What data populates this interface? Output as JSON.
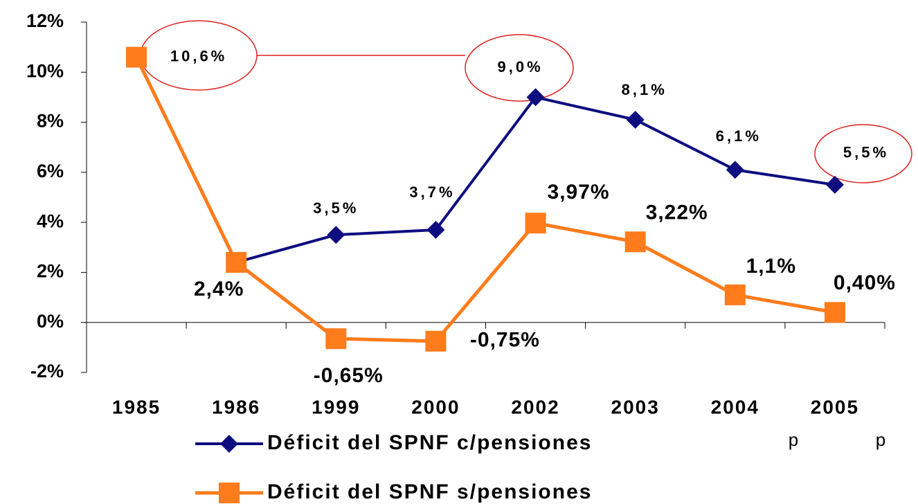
{
  "chart_data": {
    "type": "line",
    "categories": [
      "1985",
      "1986",
      "1999",
      "2000",
      "2002",
      "2003",
      "2004",
      "2005"
    ],
    "series": [
      {
        "name": "Déficit del SPNF c/pensiones",
        "color": "#0d0d80",
        "values": [
          10.6,
          2.4,
          3.5,
          3.7,
          9.0,
          8.1,
          6.1,
          5.5
        ],
        "value_labels": [
          "10,6%",
          null,
          "3,5%",
          "3,7%",
          "9,0%",
          "8,1%",
          "6,1%",
          "5,5%"
        ]
      },
      {
        "name": "Déficit del SPNF s/pensiones",
        "color": "#ff7c1c",
        "values": [
          10.6,
          2.4,
          -0.65,
          -0.75,
          3.97,
          3.22,
          1.1,
          0.4
        ],
        "value_labels": [
          null,
          "2,4%",
          "-0,65%",
          "-0,75%",
          "3,97%",
          "3,22%",
          "1,1%",
          "0,40%"
        ]
      }
    ],
    "ylim": [
      -2,
      12
    ],
    "yticks": [
      {
        "value": -2,
        "label": "-2%"
      },
      {
        "value": 0,
        "label": "0%"
      },
      {
        "value": 2,
        "label": "2%"
      },
      {
        "value": 4,
        "label": "4%"
      },
      {
        "value": 6,
        "label": "6%"
      },
      {
        "value": 8,
        "label": "8%"
      },
      {
        "value": 10,
        "label": "10%"
      },
      {
        "value": 12,
        "label": "12%"
      }
    ],
    "annotations": [
      "p",
      "p"
    ],
    "legend": "bottom"
  }
}
